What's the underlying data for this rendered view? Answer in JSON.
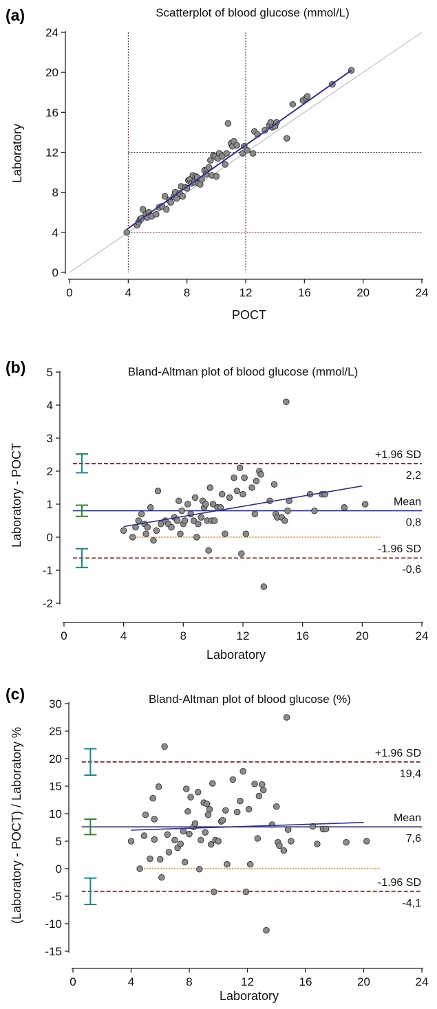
{
  "chart_data": [
    {
      "panel": "(a)",
      "type": "scatter",
      "title": "Scatterplot of blood glucose (mmol/L)",
      "xlabel": "POCT",
      "ylabel": "Laboratory",
      "xlim": [
        0,
        24
      ],
      "ylim": [
        0,
        24
      ],
      "xticks": [
        0,
        4,
        8,
        12,
        16,
        20,
        24
      ],
      "yticks": [
        0,
        4,
        8,
        12,
        16,
        20,
        24
      ],
      "points": [
        [
          3.9,
          4.0
        ],
        [
          4.6,
          4.7
        ],
        [
          4.7,
          5.0
        ],
        [
          4.8,
          5.3
        ],
        [
          4.9,
          5.4
        ],
        [
          5.0,
          6.3
        ],
        [
          5.2,
          5.8
        ],
        [
          5.3,
          5.5
        ],
        [
          5.4,
          6.0
        ],
        [
          5.6,
          5.6
        ],
        [
          5.9,
          5.8
        ],
        [
          6.1,
          6.5
        ],
        [
          6.3,
          6.6
        ],
        [
          6.5,
          7.6
        ],
        [
          6.6,
          6.3
        ],
        [
          6.8,
          7.2
        ],
        [
          6.9,
          7.0
        ],
        [
          7.1,
          7.6
        ],
        [
          7.2,
          8.0
        ],
        [
          7.3,
          7.4
        ],
        [
          7.5,
          7.9
        ],
        [
          7.6,
          8.6
        ],
        [
          7.7,
          7.6
        ],
        [
          7.9,
          8.5
        ],
        [
          8.0,
          8.4
        ],
        [
          8.1,
          9.2
        ],
        [
          8.2,
          9.3
        ],
        [
          8.3,
          8.9
        ],
        [
          8.4,
          9.7
        ],
        [
          8.5,
          9.0
        ],
        [
          8.6,
          9.6
        ],
        [
          8.7,
          9.5
        ],
        [
          8.8,
          8.9
        ],
        [
          8.9,
          8.8
        ],
        [
          9.0,
          9.3
        ],
        [
          9.2,
          10.2
        ],
        [
          9.3,
          9.8
        ],
        [
          9.4,
          10.3
        ],
        [
          9.5,
          10.5
        ],
        [
          9.6,
          11.2
        ],
        [
          9.7,
          9.7
        ],
        [
          9.8,
          11.7
        ],
        [
          9.9,
          11.6
        ],
        [
          10.0,
          9.6
        ],
        [
          10.1,
          11.4
        ],
        [
          10.2,
          11.9
        ],
        [
          10.4,
          11.6
        ],
        [
          10.6,
          10.8
        ],
        [
          10.7,
          11.9
        ],
        [
          10.8,
          14.9
        ],
        [
          11.0,
          12.9
        ],
        [
          11.1,
          12.6
        ],
        [
          11.2,
          13.1
        ],
        [
          11.4,
          12.7
        ],
        [
          11.8,
          11.9
        ],
        [
          11.9,
          12.6
        ],
        [
          12.1,
          12.2
        ],
        [
          12.5,
          11.9
        ],
        [
          12.6,
          14.1
        ],
        [
          12.8,
          13.8
        ],
        [
          13.3,
          14.2
        ],
        [
          13.6,
          14.7
        ],
        [
          13.7,
          15.0
        ],
        [
          13.8,
          14.5
        ],
        [
          14.0,
          14.6
        ],
        [
          14.1,
          15.0
        ],
        [
          14.8,
          13.4
        ],
        [
          15.2,
          16.8
        ],
        [
          15.9,
          17.2
        ],
        [
          16.1,
          17.4
        ],
        [
          16.2,
          17.6
        ],
        [
          17.9,
          18.8
        ],
        [
          19.2,
          20.2
        ]
      ],
      "regression_line": [
        [
          3.9,
          4.3
        ],
        [
          19.2,
          20.2
        ]
      ],
      "identity_line": [
        [
          0,
          0
        ],
        [
          24,
          24
        ]
      ],
      "reference_lines_x": [
        4,
        12
      ],
      "reference_lines_y": [
        4,
        12
      ],
      "grid": false,
      "colors": {
        "points": "#8c8c8c",
        "regression": "#2e3192",
        "identity": "#b3b3b3",
        "reference": "#8b0000"
      }
    },
    {
      "panel": "(b)",
      "type": "scatter",
      "title": "Bland-Altman plot of blood glucose (mmol/L)",
      "xlabel": "Laboratory",
      "ylabel": "Laboratory - POCT",
      "xlim": [
        0,
        24
      ],
      "ylim": [
        -2,
        5
      ],
      "xticks": [
        0,
        4,
        8,
        12,
        16,
        20,
        24
      ],
      "yticks": [
        -2,
        -1,
        0,
        1,
        2,
        3,
        4,
        5
      ],
      "points": [
        [
          4.0,
          0.2
        ],
        [
          4.6,
          0.0
        ],
        [
          4.8,
          0.3
        ],
        [
          5.0,
          0.5
        ],
        [
          5.2,
          0.7
        ],
        [
          5.4,
          0.4
        ],
        [
          5.5,
          0.1
        ],
        [
          5.6,
          0.3
        ],
        [
          5.8,
          0.9
        ],
        [
          6.0,
          -0.1
        ],
        [
          6.2,
          0.2
        ],
        [
          6.3,
          1.4
        ],
        [
          6.5,
          0.4
        ],
        [
          6.8,
          0.5
        ],
        [
          7.0,
          0.4
        ],
        [
          7.2,
          0.3
        ],
        [
          7.4,
          0.6
        ],
        [
          7.6,
          0.5
        ],
        [
          7.7,
          1.1
        ],
        [
          7.8,
          0.1
        ],
        [
          7.9,
          0.8
        ],
        [
          8.0,
          0.4
        ],
        [
          8.1,
          0.5
        ],
        [
          8.3,
          1.0
        ],
        [
          8.5,
          0.7
        ],
        [
          8.7,
          0.5
        ],
        [
          8.8,
          1.2
        ],
        [
          8.9,
          0.0
        ],
        [
          9.0,
          0.4
        ],
        [
          9.2,
          0.6
        ],
        [
          9.3,
          1.1
        ],
        [
          9.4,
          0.9
        ],
        [
          9.5,
          1.0
        ],
        [
          9.6,
          0.5
        ],
        [
          9.7,
          -0.4
        ],
        [
          9.8,
          1.5
        ],
        [
          9.9,
          0.5
        ],
        [
          10.0,
          1.0
        ],
        [
          10.1,
          0.5
        ],
        [
          10.3,
          0.9
        ],
        [
          10.5,
          0.9
        ],
        [
          10.6,
          1.3
        ],
        [
          10.8,
          0.1
        ],
        [
          11.1,
          1.2
        ],
        [
          11.4,
          1.8
        ],
        [
          11.6,
          1.4
        ],
        [
          11.8,
          2.1
        ],
        [
          11.9,
          -0.5
        ],
        [
          12.0,
          1.3
        ],
        [
          12.1,
          1.8
        ],
        [
          12.2,
          0.1
        ],
        [
          12.6,
          1.5
        ],
        [
          12.8,
          0.7
        ],
        [
          12.9,
          1.7
        ],
        [
          13.1,
          2.0
        ],
        [
          13.2,
          1.9
        ],
        [
          13.4,
          -1.5
        ],
        [
          13.8,
          1.1
        ],
        [
          14.1,
          1.6
        ],
        [
          14.2,
          0.7
        ],
        [
          14.3,
          0.6
        ],
        [
          14.6,
          0.6
        ],
        [
          14.8,
          0.5
        ],
        [
          14.9,
          4.1
        ],
        [
          15.0,
          0.8
        ],
        [
          15.1,
          1.1
        ],
        [
          16.5,
          1.3
        ],
        [
          16.8,
          0.8
        ],
        [
          17.3,
          1.3
        ],
        [
          17.5,
          1.3
        ],
        [
          18.8,
          0.9
        ],
        [
          20.2,
          1.0
        ]
      ],
      "mean": 0.8,
      "upper_loa": 2.23,
      "lower_loa": -0.63,
      "zero_line": 0,
      "regression_line": [
        [
          4.0,
          0.32
        ],
        [
          20.0,
          1.55
        ]
      ],
      "ci_bars": [
        {
          "center": 2.22,
          "low": 1.95,
          "high": 2.52,
          "color": "#1a8a8a"
        },
        {
          "center": 0.8,
          "low": 0.63,
          "high": 0.97,
          "color": "#2e8b2e"
        },
        {
          "center": -0.63,
          "low": -0.92,
          "high": -0.35,
          "color": "#1a8a8a"
        }
      ],
      "annotations": {
        "upper_label": "+1.96 SD",
        "upper_value": "2,2",
        "mean_label": "Mean",
        "mean_value": "0,8",
        "lower_label": "-1.96 SD",
        "lower_value": "-0,6"
      },
      "grid": false,
      "colors": {
        "points": "#8c8c8c",
        "mean": "#2e3192",
        "loa": "#8b0000",
        "zero": "#f08020",
        "regression": "#2e3192"
      }
    },
    {
      "panel": "(c)",
      "type": "scatter",
      "title": "Bland-Altman plot of blood glucose (%)",
      "xlabel": "Laboratory",
      "ylabel": "(Laboratory - POCT) / Laboratory %",
      "xlim": [
        0,
        24
      ],
      "ylim": [
        -15,
        30
      ],
      "xticks": [
        0,
        4,
        8,
        12,
        16,
        20,
        24
      ],
      "yticks": [
        -15,
        -10,
        -5,
        0,
        5,
        10,
        15,
        20,
        25,
        30
      ],
      "points": [
        [
          4.0,
          5.0
        ],
        [
          4.6,
          0.0
        ],
        [
          4.9,
          6.0
        ],
        [
          5.0,
          9.8
        ],
        [
          5.3,
          1.8
        ],
        [
          5.5,
          12.8
        ],
        [
          5.6,
          9.0
        ],
        [
          5.6,
          5.3
        ],
        [
          5.9,
          14.9
        ],
        [
          6.0,
          1.7
        ],
        [
          6.1,
          -1.6
        ],
        [
          6.3,
          22.2
        ],
        [
          6.5,
          6.2
        ],
        [
          6.6,
          3.0
        ],
        [
          7.0,
          5.2
        ],
        [
          7.2,
          3.8
        ],
        [
          7.4,
          4.5
        ],
        [
          7.6,
          6.8
        ],
        [
          7.7,
          1.2
        ],
        [
          7.8,
          14.5
        ],
        [
          7.9,
          10.4
        ],
        [
          8.0,
          6.3
        ],
        [
          8.1,
          13.0
        ],
        [
          8.3,
          7.6
        ],
        [
          8.4,
          8.2
        ],
        [
          8.6,
          13.9
        ],
        [
          8.7,
          -0.1
        ],
        [
          8.8,
          5.2
        ],
        [
          9.0,
          12.0
        ],
        [
          9.1,
          6.6
        ],
        [
          9.2,
          11.8
        ],
        [
          9.3,
          9.8
        ],
        [
          9.4,
          10.8
        ],
        [
          9.5,
          4.4
        ],
        [
          9.6,
          15.5
        ],
        [
          9.7,
          -4.2
        ],
        [
          9.8,
          5.2
        ],
        [
          10.0,
          5.0
        ],
        [
          10.2,
          8.6
        ],
        [
          10.3,
          8.8
        ],
        [
          10.5,
          10.6
        ],
        [
          10.6,
          0.8
        ],
        [
          11.0,
          16.2
        ],
        [
          11.3,
          10.3
        ],
        [
          11.5,
          12.3
        ],
        [
          11.7,
          17.7
        ],
        [
          11.9,
          -4.2
        ],
        [
          12.1,
          10.8
        ],
        [
          12.2,
          0.8
        ],
        [
          12.5,
          15.4
        ],
        [
          12.7,
          5.5
        ],
        [
          12.8,
          13.2
        ],
        [
          13.0,
          15.3
        ],
        [
          13.1,
          14.3
        ],
        [
          13.3,
          -11.2
        ],
        [
          13.7,
          8.0
        ],
        [
          14.0,
          11.3
        ],
        [
          14.1,
          4.8
        ],
        [
          14.2,
          4.2
        ],
        [
          14.5,
          3.3
        ],
        [
          14.7,
          27.5
        ],
        [
          14.8,
          7.1
        ],
        [
          15.0,
          5.0
        ],
        [
          16.5,
          7.7
        ],
        [
          16.8,
          4.5
        ],
        [
          17.2,
          7.2
        ],
        [
          17.4,
          7.2
        ],
        [
          18.8,
          4.8
        ],
        [
          20.2,
          5.0
        ]
      ],
      "mean": 7.6,
      "upper_loa": 19.4,
      "lower_loa": -4.1,
      "zero_line": 0,
      "regression_line": [
        [
          4.0,
          7.0
        ],
        [
          20.0,
          8.4
        ]
      ],
      "ci_bars": [
        {
          "center": 19.4,
          "low": 17.0,
          "high": 21.8,
          "color": "#1a8a8a"
        },
        {
          "center": 7.6,
          "low": 6.2,
          "high": 9.0,
          "color": "#2e8b2e"
        },
        {
          "center": -4.1,
          "low": -6.5,
          "high": -1.7,
          "color": "#1a8a8a"
        }
      ],
      "annotations": {
        "upper_label": "+1.96 SD",
        "upper_value": "19,4",
        "mean_label": "Mean",
        "mean_value": "7,6",
        "lower_label": "-1.96 SD",
        "lower_value": "-4,1"
      },
      "grid": false,
      "colors": {
        "points": "#8c8c8c",
        "mean": "#2e3192",
        "loa": "#8b0000",
        "zero": "#f08020",
        "regression": "#2e3192"
      }
    }
  ]
}
